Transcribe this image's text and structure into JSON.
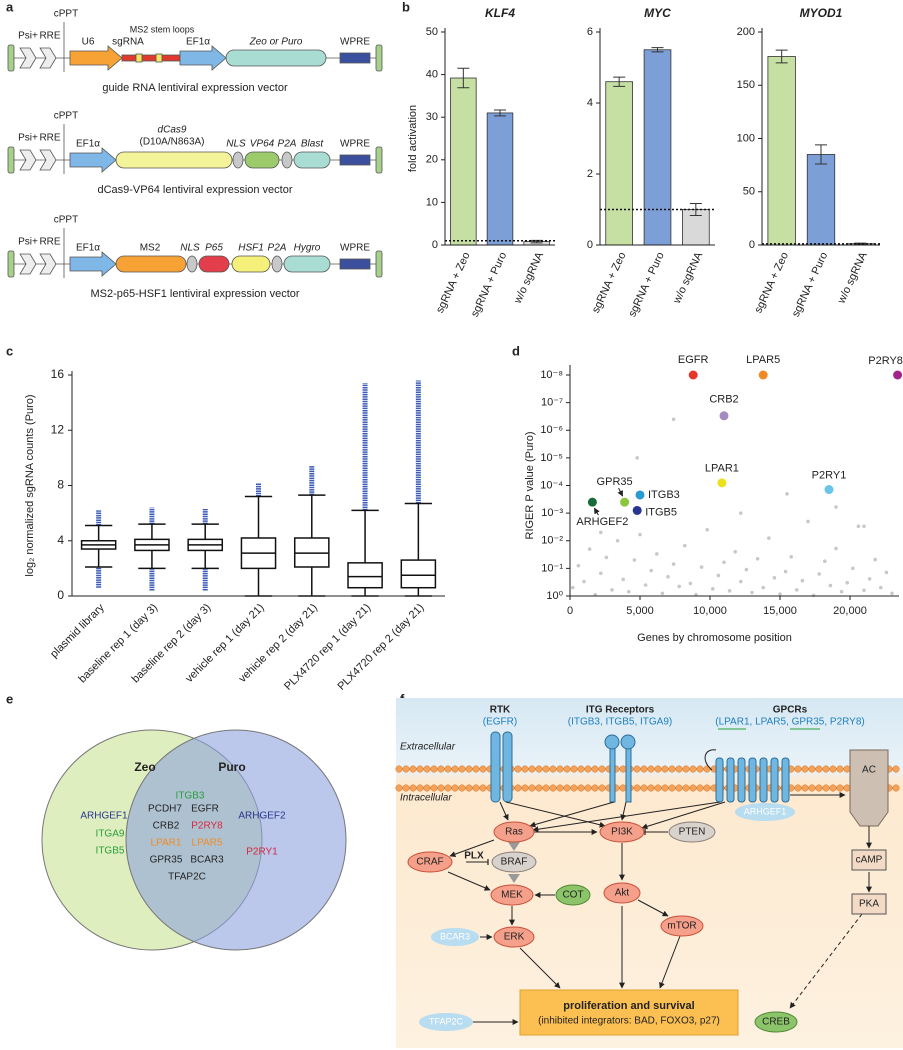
{
  "panel_labels": [
    "a",
    "b",
    "c",
    "d",
    "e",
    "f"
  ],
  "vectors": [
    {
      "psi": "Psi+",
      "rre": "RRE",
      "cppt": "cPPT",
      "promoter1": "U6",
      "sgrna": "sgRNA",
      "stem_loops": "MS2 stem loops",
      "promoter2": "EF1α",
      "marker": "Zeo or Puro",
      "wpre": "WPRE",
      "caption": "guide RNA lentiviral expression vector"
    },
    {
      "psi": "Psi+",
      "rre": "RRE",
      "cppt": "cPPT",
      "promoter": "EF1α",
      "cas9": "dCas9",
      "mutations": "(D10A/N863A)",
      "nls": "NLS",
      "vp64": "VP64",
      "p2a": "P2A",
      "marker": "Blast",
      "wpre": "WPRE",
      "caption": "dCas9-VP64 lentiviral expression vector"
    },
    {
      "psi": "Psi+",
      "rre": "RRE",
      "cppt": "cPPT",
      "promoter": "EF1α",
      "ms2": "MS2",
      "nls": "NLS",
      "p65": "P65",
      "hsf1": "HSF1",
      "p2a": "P2A",
      "marker": "Hygro",
      "wpre": "WPRE",
      "caption": "MS2-p65-HSF1 lentiviral expression vector"
    }
  ],
  "chart_data": [
    {
      "type": "bar",
      "title": "KLF4",
      "y_label": "fold activation",
      "categories": [
        "sgRNA + Zeo",
        "sgRNA + Puro",
        "w/o sgRNA"
      ],
      "values": [
        39.2,
        31,
        0.8
      ],
      "errors": [
        2.3,
        0.7,
        0.3
      ],
      "colors": [
        "#c6e0a4",
        "#7d9fd8",
        "#d9d9d9"
      ],
      "reference_line": 1,
      "ylim": [
        0,
        50
      ],
      "yticks": [
        0,
        10,
        20,
        30,
        40,
        50
      ]
    },
    {
      "type": "bar",
      "title": "MYC",
      "categories": [
        "sgRNA + Zeo",
        "sgRNA + Puro",
        "w/o sgRNA"
      ],
      "values": [
        4.6,
        5.5,
        1.0
      ],
      "errors": [
        0.13,
        0.06,
        0.17
      ],
      "colors": [
        "#c6e0a4",
        "#7d9fd8",
        "#d9d9d9"
      ],
      "reference_line": 1,
      "ylim": [
        0,
        6
      ],
      "yticks": [
        0,
        2,
        4,
        6
      ]
    },
    {
      "type": "bar",
      "title": "MYOD1",
      "categories": [
        "sgRNA + Zeo",
        "sgRNA + Puro",
        "w/o sgRNA"
      ],
      "values": [
        177,
        85,
        1.2
      ],
      "errors": [
        6,
        9,
        0.6
      ],
      "colors": [
        "#c6e0a4",
        "#7d9fd8",
        "#d9d9d9"
      ],
      "reference_line": 1,
      "ylim": [
        0,
        200
      ],
      "yticks": [
        0,
        50,
        100,
        150,
        200
      ]
    },
    {
      "type": "box",
      "y_label": "log₂ normalized sgRNA counts (Puro)",
      "categories": [
        "plasmid library",
        "baseline rep 1 (day 3)",
        "baseline rep 2 (day 3)",
        "vehicle rep 1 (day 21)",
        "vehicle rep 2 (day 21)",
        "PLX4720 rep 1 (day 21)",
        "PLX4720 rep 2 (day 21)"
      ],
      "whisker_low": [
        2.1,
        2.0,
        2.0,
        0,
        0,
        0,
        0
      ],
      "q1": [
        3.4,
        3.3,
        3.3,
        2.0,
        2.1,
        0.6,
        0.6
      ],
      "median": [
        3.7,
        3.7,
        3.7,
        3.1,
        3.1,
        1.4,
        1.5
      ],
      "q3": [
        4.0,
        4.1,
        4.1,
        4.2,
        4.2,
        2.4,
        2.6
      ],
      "whisker_high": [
        5.1,
        5.2,
        5.2,
        7.2,
        7.3,
        6.2,
        6.7
      ],
      "outliers_low_span": [
        [
          0.6,
          2.1
        ],
        [
          0.4,
          2.0
        ],
        [
          0.4,
          2.0
        ],
        null,
        null,
        null,
        null
      ],
      "outliers_high_span": [
        [
          5.1,
          6.2
        ],
        [
          5.2,
          6.4
        ],
        [
          5.2,
          6.3
        ],
        [
          7.2,
          8.2
        ],
        [
          7.3,
          9.4
        ],
        [
          6.2,
          15.4
        ],
        [
          6.7,
          15.6
        ]
      ],
      "outlier_color": "#3a5bb8",
      "ylim": [
        0,
        16
      ],
      "yticks": [
        0,
        4,
        8,
        12,
        16
      ]
    },
    {
      "type": "scatter",
      "y_label": "RIGER P value (Puro)",
      "x_label": "Genes by chromosome position",
      "log_y": true,
      "xlim": [
        0,
        23500
      ],
      "xticks": [
        0,
        {
          "value": 5000,
          "label": "5,000"
        },
        {
          "value": 10000,
          "label": "10,000"
        },
        {
          "value": 15000,
          "label": "15,000"
        },
        {
          "value": 20000,
          "label": "20,000"
        }
      ],
      "ylim": [
        1,
        1e-08
      ],
      "yticks": [
        {
          "value": 1,
          "label": "10⁰"
        },
        {
          "value": 0.1,
          "label": "10⁻¹"
        },
        {
          "value": 0.01,
          "label": "10⁻²"
        },
        {
          "value": 0.001,
          "label": "10⁻³"
        },
        {
          "value": 0.0001,
          "label": "10⁻⁴"
        },
        {
          "value": 1e-05,
          "label": "10⁻⁵"
        },
        {
          "value": 1e-06,
          "label": "10⁻⁶"
        },
        {
          "value": 1e-07,
          "label": "10⁻⁷"
        },
        {
          "value": 1e-08,
          "label": "10⁻⁸"
        }
      ],
      "series": [
        {
          "color": "#c8c8c8",
          "x": [
            200,
            600,
            1000,
            1400,
            1800,
            2200,
            2600,
            3000,
            3400,
            3800,
            4200,
            4600,
            5000,
            5400,
            5800,
            6200,
            6600,
            7000,
            7400,
            7800,
            8200,
            8600,
            9000,
            9400,
            9800,
            10200,
            10600,
            11000,
            11400,
            11800,
            12200,
            12600,
            13000,
            13400,
            13800,
            14200,
            14600,
            15000,
            15400,
            15800,
            16200,
            16600,
            17000,
            17400,
            17800,
            18200,
            18600,
            19000,
            19400,
            19800,
            20200,
            20600,
            21000,
            21400,
            21800,
            22200,
            22600,
            23000,
            4800,
            7400,
            15500,
            21000,
            12200,
            2200,
            19000
          ],
          "values": [
            0.5,
            0.08,
            0.3,
            0.02,
            0.9,
            0.15,
            0.04,
            0.6,
            0.01,
            0.25,
            0.7,
            0.05,
            0.006,
            0.4,
            0.12,
            0.03,
            0.8,
            0.2,
            0.07,
            0.45,
            0.015,
            0.35,
            0.9,
            0.09,
            0.004,
            0.55,
            0.18,
            0.06,
            0.65,
            0.025,
            0.3,
            0.11,
            0.75,
            0.045,
            0.5,
            0.008,
            0.22,
            0.85,
            0.13,
            0.038,
            0.6,
            0.28,
            0.002,
            0.95,
            0.16,
            0.055,
            0.42,
            0.019,
            0.7,
            0.33,
            0.1,
            0.003,
            0.62,
            0.24,
            0.048,
            0.5,
            0.14,
            0.8,
            1e-05,
            4e-07,
            0.0002,
            0.003,
            0.001,
            0.005,
            0.0006
          ]
        },
        {
          "name": "EGFR",
          "color": "#e8352a",
          "x": [
            8800
          ],
          "values": [
            1e-08
          ]
        },
        {
          "name": "LPAR5",
          "color": "#f08a24",
          "x": [
            13800
          ],
          "values": [
            1e-08
          ]
        },
        {
          "name": "P2RY8",
          "color": "#a0248c",
          "x": [
            23400
          ],
          "values": [
            1e-08
          ]
        },
        {
          "name": "CRB2",
          "color": "#a48bc0",
          "x": [
            11000
          ],
          "values": [
            3e-07
          ]
        },
        {
          "name": "LPAR1",
          "color": "#ece21c",
          "x": [
            10850
          ],
          "values": [
            8e-05
          ]
        },
        {
          "name": "P2RY1",
          "color": "#6bc5e8",
          "x": [
            18500
          ],
          "values": [
            0.00014
          ]
        },
        {
          "name": "GPR35",
          "color": "#8cc63f",
          "x": [
            3900
          ],
          "values": [
            0.0004
          ]
        },
        {
          "name": "ITGB3",
          "color": "#2a9bd0",
          "x": [
            5000
          ],
          "values": [
            0.00022
          ]
        },
        {
          "name": "ITGB5",
          "color": "#2a3590",
          "x": [
            4800
          ],
          "values": [
            0.0008
          ]
        },
        {
          "name": "ARHGEF2",
          "color": "#1a6b3a",
          "x": [
            1600
          ],
          "values": [
            0.0004
          ]
        }
      ]
    }
  ],
  "venn": {
    "left_title": "Zeo",
    "right_title": "Puro",
    "left_only": [
      "ARHGEF1",
      "ITGA9",
      "ITGB5"
    ],
    "shared": [
      "ITGB3",
      "PCDH7",
      "EGFR",
      "CRB2",
      "P2RY8",
      "LPAR1",
      "LPAR5",
      "GPR35",
      "BCAR3",
      "TFAP2C"
    ],
    "right_only": [
      "ARHGEF2",
      "P2RY1"
    ]
  },
  "pathway": {
    "rtk": "RTK",
    "rtk_genes": "(EGFR)",
    "itg": "ITG Receptors",
    "itg_genes": "(ITGB3, ITGB5, ITGA9)",
    "gpcr": "GPCRs",
    "gpcr_genes": "(LPAR1, LPAR5, GPR35, P2RY8)",
    "extracellular": "Extracellular",
    "intracellular": "Intracellular",
    "nodes": {
      "ac": "AC",
      "arhgef1": "ARHGEF1",
      "ras": "Ras",
      "pi3k": "PI3K",
      "pten": "PTEN",
      "craf": "CRAF",
      "plx": "PLX",
      "braf": "BRAF",
      "mek": "MEK",
      "cot": "COT",
      "akt": "Akt",
      "mtor": "mTOR",
      "bcar3": "BCAR3",
      "erk": "ERK",
      "camp": "cAMP",
      "pka": "PKA",
      "tfap2c": "TFAP2C",
      "creb": "CREB"
    },
    "outcome": "proliferation and survival",
    "outcome_detail": "(inhibited integrators: BAD, FOXO3, p27)"
  }
}
